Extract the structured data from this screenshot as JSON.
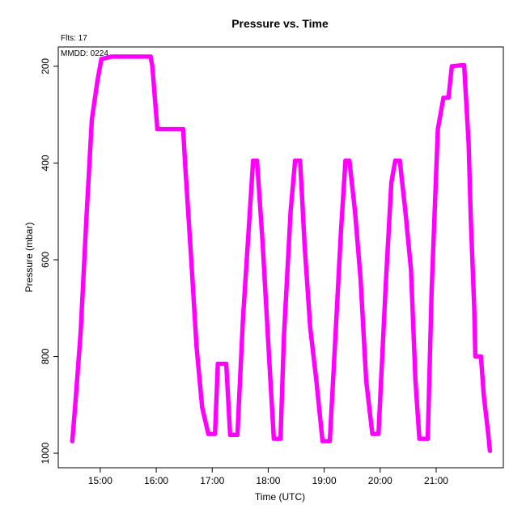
{
  "chart_data": {
    "type": "scatter",
    "title": "Pressure  vs. Time",
    "xlabel": "Time (UTC)",
    "ylabel": "Pressure (mbar)",
    "annotations": {
      "flts": "Flts: 17",
      "mmdd": "MMDD: 0224"
    },
    "xlim_hours": [
      14.25,
      22.2
    ],
    "ylim": [
      1030,
      160
    ],
    "y_inverted": true,
    "x_ticks": [
      {
        "value": 15,
        "label": "15:00"
      },
      {
        "value": 16,
        "label": "16:00"
      },
      {
        "value": 17,
        "label": "17:00"
      },
      {
        "value": 18,
        "label": "18:00"
      },
      {
        "value": 19,
        "label": "19:00"
      },
      {
        "value": 20,
        "label": "20:00"
      },
      {
        "value": 21,
        "label": "21:00"
      }
    ],
    "y_ticks": [
      {
        "value": 200,
        "label": "200"
      },
      {
        "value": 400,
        "label": "400"
      },
      {
        "value": 600,
        "label": "600"
      },
      {
        "value": 800,
        "label": "800"
      },
      {
        "value": 1000,
        "label": "1000"
      }
    ],
    "grid": false,
    "legend": "none",
    "marker_color": "#ff00ff",
    "series": [
      {
        "x": [
          14.5,
          14.55,
          14.65,
          14.75,
          14.85,
          14.95,
          15.02,
          15.2,
          15.9,
          15.93,
          16.02,
          16.15,
          16.48,
          16.52,
          16.62,
          16.72,
          16.82,
          16.93,
          16.97,
          17.05,
          17.1,
          17.25,
          17.32,
          17.45,
          17.55,
          17.65,
          17.73,
          17.8,
          17.9,
          18.0,
          18.1,
          18.22,
          18.28,
          18.4,
          18.48,
          18.57,
          18.65,
          18.75,
          18.86,
          18.97,
          19.1,
          19.2,
          19.3,
          19.38,
          19.45,
          19.55,
          19.65,
          19.75,
          19.86,
          19.97,
          20.1,
          20.2,
          20.27,
          20.35,
          20.45,
          20.55,
          20.63,
          20.7,
          20.85,
          20.92,
          21.0,
          21.03,
          21.13,
          21.22,
          21.28,
          21.43,
          21.5,
          21.58,
          21.62,
          21.68,
          21.7,
          21.77,
          21.8,
          21.85,
          21.93,
          21.96
        ],
        "y": [
          975,
          905,
          750,
          520,
          310,
          230,
          185,
          180,
          180,
          200,
          330,
          330,
          330,
          410,
          590,
          780,
          905,
          960,
          960,
          960,
          815,
          815,
          962,
          962,
          720,
          540,
          395,
          395,
          565,
          770,
          970,
          970,
          760,
          500,
          395,
          395,
          570,
          740,
          850,
          975,
          975,
          760,
          540,
          395,
          395,
          500,
          640,
          850,
          960,
          960,
          650,
          440,
          395,
          395,
          500,
          620,
          850,
          970,
          970,
          660,
          420,
          330,
          265,
          265,
          200,
          198,
          198,
          360,
          520,
          700,
          800,
          800,
          800,
          880,
          960,
          995
        ]
      }
    ]
  }
}
